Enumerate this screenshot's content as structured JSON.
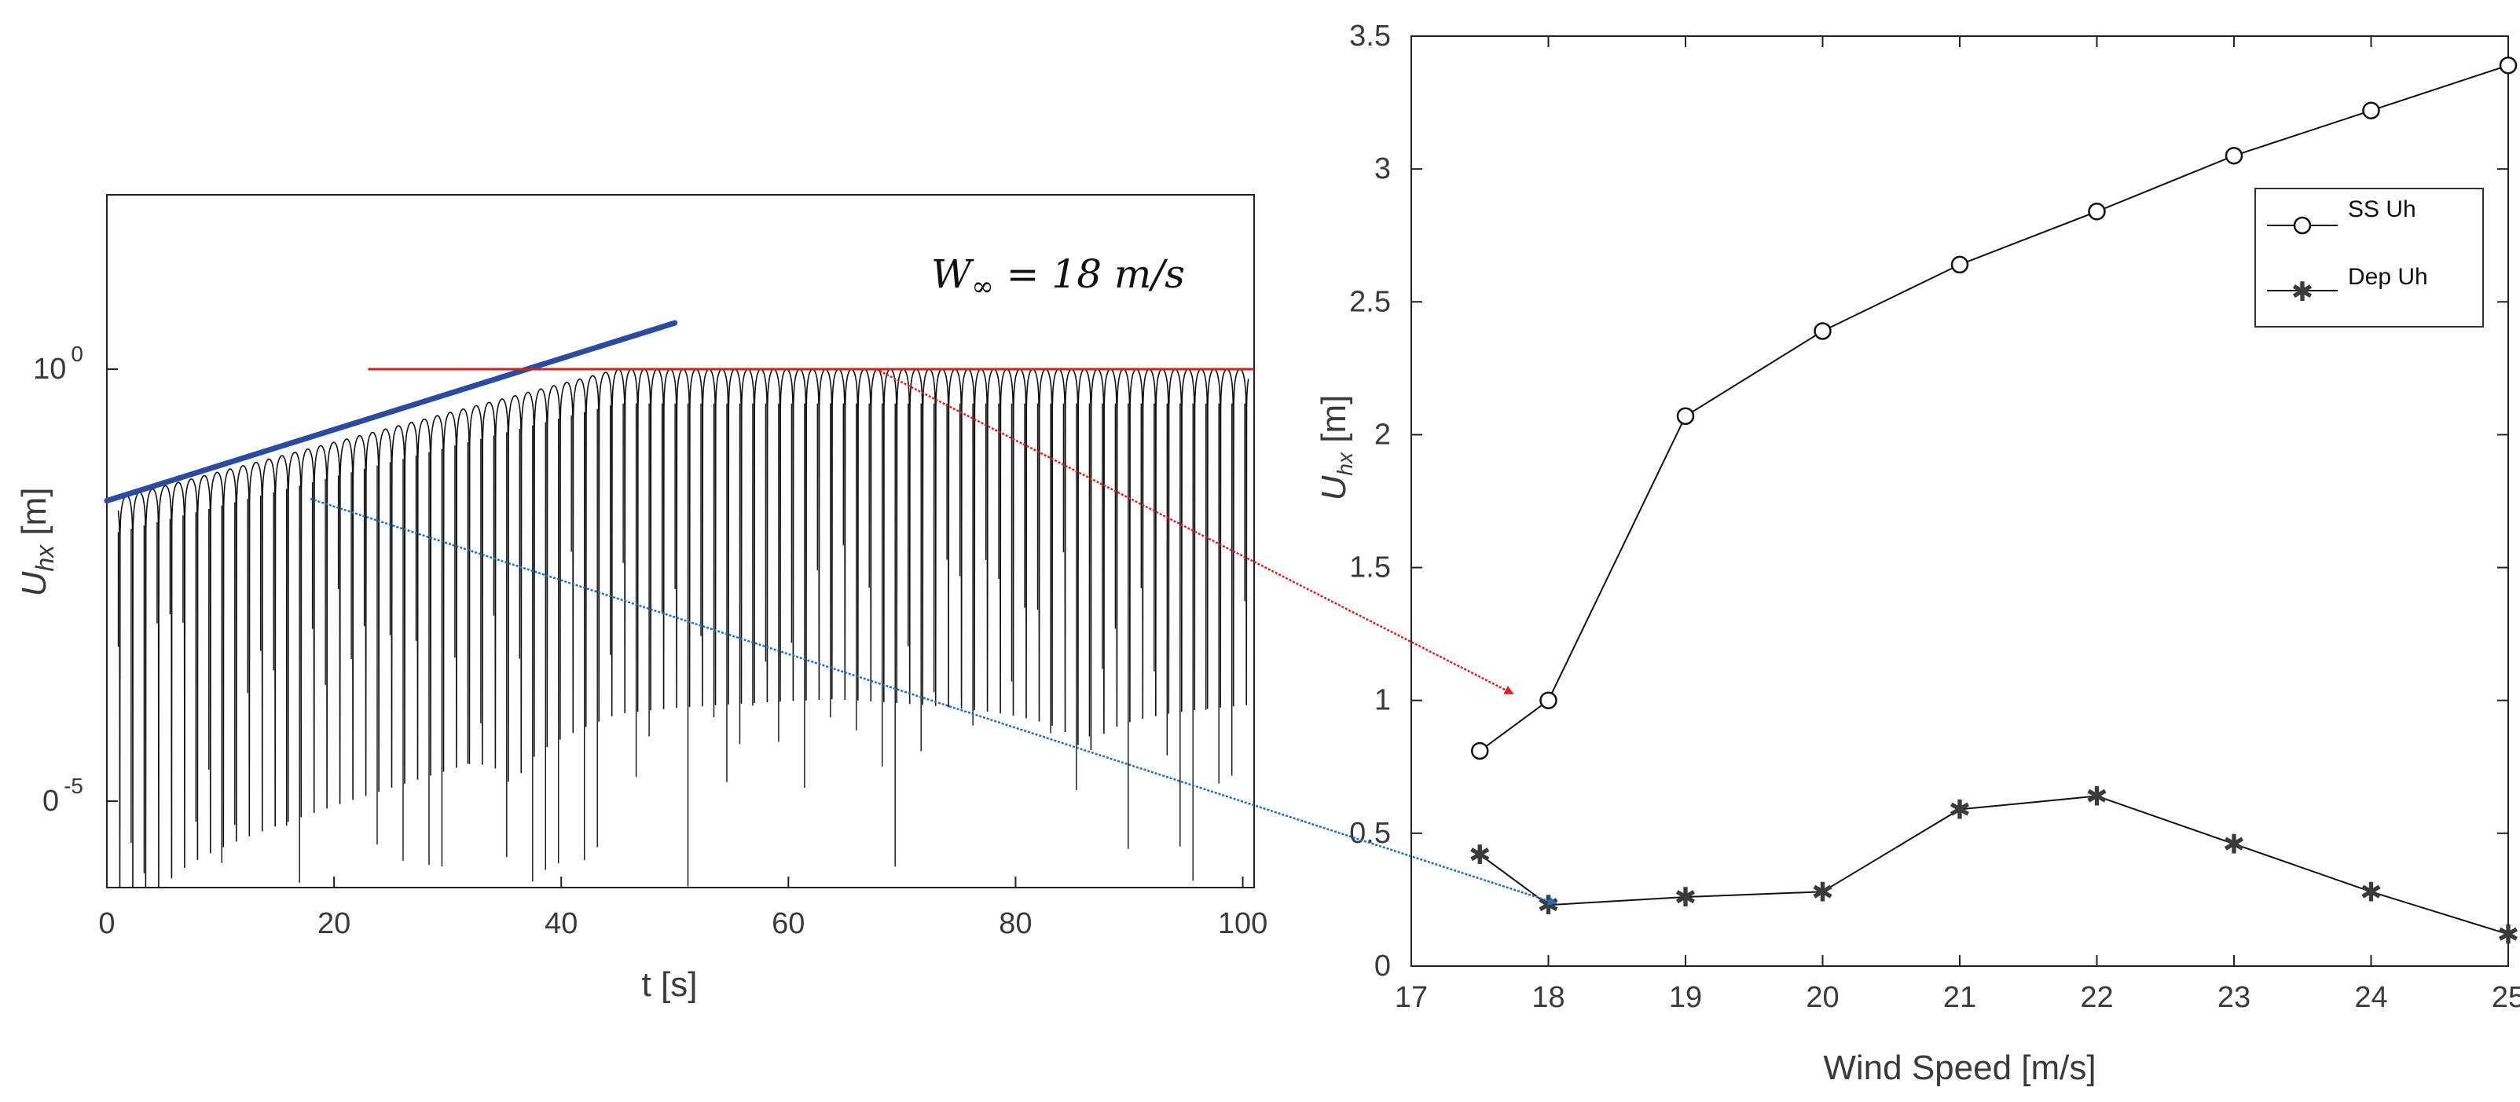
{
  "chart_data": [
    {
      "type": "line",
      "scale": "log-y",
      "x_label": "t [s]",
      "y_label_main": "U",
      "y_label_sub": "hx",
      "y_label_unit": " [m]",
      "xlim": [
        0,
        101
      ],
      "x_ticks": [
        0,
        20,
        40,
        60,
        80,
        100
      ],
      "x_tick_labels": [
        "0",
        "20",
        "40",
        "60",
        "80",
        "100"
      ],
      "y_tick_labels": [
        {
          "base": "10",
          "exp": "0",
          "y": 1
        },
        {
          "base": "0",
          "exp": "-5",
          "y": 1e-05
        }
      ],
      "annotation": {
        "lhs": "W",
        "sub": "∞",
        "rhs": " = 18 m/s"
      },
      "envelope_start_amplitude": 0.03,
      "oscillation_period": 1.14,
      "saturation_time": 45,
      "saturation_amplitude": 1,
      "growth_line": {
        "t": [
          0,
          50
        ],
        "color": "#2b4ba0"
      },
      "saturation_line": {
        "t": [
          23,
          101
        ],
        "value": 1,
        "color": "#d62020"
      },
      "signal_color": "#111111"
    },
    {
      "type": "line",
      "x_label": "Wind Speed [m/s]",
      "y_label_main": "U",
      "y_label_sub": "hx",
      "y_label_unit": " [m]",
      "xlim": [
        17,
        25
      ],
      "ylim": [
        0,
        3.5
      ],
      "x_ticks": [
        17,
        18,
        19,
        20,
        21,
        22,
        23,
        24,
        25
      ],
      "y_ticks": [
        "0",
        "0.5",
        "1",
        "1.5",
        "2",
        "2.5",
        "3",
        "3.5"
      ],
      "series": [
        {
          "name": "SS    Uh",
          "marker": "circle",
          "x": [
            17.5,
            18,
            19,
            20,
            21,
            22,
            23,
            24,
            25
          ],
          "y": [
            0.81,
            1.0,
            2.07,
            2.39,
            2.64,
            2.84,
            3.05,
            3.22,
            3.39
          ]
        },
        {
          "name": "Dep    Uh",
          "marker": "star",
          "x": [
            17.5,
            18,
            19,
            20,
            21,
            22,
            23,
            24,
            25
          ],
          "y": [
            0.42,
            0.23,
            0.26,
            0.28,
            0.59,
            0.64,
            0.46,
            0.28,
            0.12
          ]
        }
      ],
      "legend_position": "top-right"
    }
  ],
  "arrows": [
    {
      "from": "saturation-level",
      "to": "SS Uh at 18 m/s",
      "color": "#e02020"
    },
    {
      "from": "growth-line",
      "to": "Dep Uh at 18 m/s",
      "color": "#1f6fc0"
    }
  ]
}
